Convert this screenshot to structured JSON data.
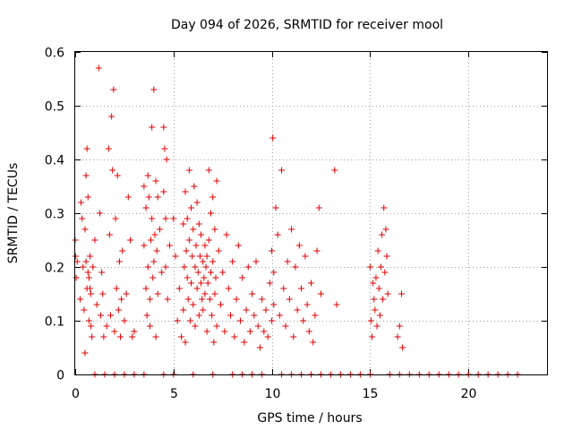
{
  "chart_data": {
    "type": "scatter",
    "title": "Day 094 of 2026, SRMTID for receiver mool",
    "xlabel": "GPS time / hours",
    "ylabel": "SRMTID / TECUs",
    "xlim": [
      0,
      24
    ],
    "ylim": [
      0,
      0.6
    ],
    "xticks": [
      "0",
      "5",
      "10",
      "15",
      "20"
    ],
    "yticks": [
      "0",
      "0.1",
      "0.2",
      "0.3",
      "0.4",
      "0.5",
      "0.6"
    ],
    "grid": true,
    "marker": "+",
    "series": [
      {
        "name": "SRMTID",
        "color": "#e00000",
        "x": [
          0.0,
          0.02,
          0.05,
          0.1,
          0.25,
          0.3,
          0.35,
          0.4,
          0.45,
          0.5,
          0.5,
          0.55,
          0.55,
          0.6,
          0.6,
          0.65,
          0.65,
          0.7,
          0.7,
          0.75,
          0.75,
          0.8,
          0.8,
          0.85,
          0.9,
          1.0,
          1.1,
          1.2,
          1.25,
          1.3,
          1.35,
          1.4,
          1.45,
          1.6,
          1.7,
          1.75,
          1.8,
          1.85,
          1.9,
          1.95,
          2.0,
          2.05,
          2.1,
          2.15,
          2.2,
          2.25,
          2.3,
          2.35,
          2.4,
          2.5,
          2.6,
          2.7,
          2.8,
          2.9,
          3.0,
          3.5,
          3.5,
          3.6,
          3.6,
          3.65,
          3.7,
          3.7,
          3.75,
          3.8,
          3.8,
          3.85,
          3.9,
          3.9,
          3.95,
          4.0,
          4.0,
          4.05,
          4.1,
          4.1,
          4.15,
          4.2,
          4.2,
          4.3,
          4.4,
          4.5,
          4.5,
          4.55,
          4.6,
          4.6,
          4.65,
          4.7,
          4.8,
          5.0,
          5.1,
          5.2,
          5.3,
          5.4,
          5.5,
          5.5,
          5.55,
          5.6,
          5.6,
          5.65,
          5.7,
          5.7,
          5.75,
          5.8,
          5.8,
          5.85,
          5.9,
          5.9,
          5.95,
          6.0,
          6.0,
          6.05,
          6.1,
          6.1,
          6.15,
          6.2,
          6.2,
          6.25,
          6.3,
          6.3,
          6.35,
          6.4,
          6.4,
          6.45,
          6.5,
          6.5,
          6.55,
          6.6,
          6.6,
          6.65,
          6.7,
          6.7,
          6.75,
          6.8,
          6.8,
          6.85,
          6.9,
          6.9,
          6.95,
          7.0,
          7.0,
          7.05,
          7.1,
          7.1,
          7.15,
          7.2,
          7.2,
          7.3,
          7.4,
          7.5,
          7.6,
          7.7,
          7.8,
          7.9,
          8.0,
          8.1,
          8.2,
          8.3,
          8.4,
          8.5,
          8.6,
          8.7,
          8.8,
          8.9,
          9.0,
          9.1,
          9.2,
          9.3,
          9.4,
          9.5,
          9.6,
          9.7,
          9.8,
          9.9,
          10.0,
          10.0,
          10.05,
          10.1,
          10.1,
          10.2,
          10.3,
          10.4,
          10.5,
          10.6,
          10.7,
          10.8,
          10.9,
          11.0,
          11.1,
          11.2,
          11.3,
          11.4,
          11.5,
          11.6,
          11.7,
          11.8,
          11.9,
          12.0,
          12.1,
          12.2,
          12.3,
          12.4,
          12.5,
          13.2,
          13.3,
          15.0,
          15.05,
          15.1,
          15.15,
          15.2,
          15.25,
          15.3,
          15.35,
          15.4,
          15.45,
          15.5,
          15.55,
          15.6,
          15.65,
          15.7,
          15.75,
          15.8,
          15.85,
          15.9,
          16.4,
          16.5,
          16.6,
          16.65,
          1.0,
          1.5,
          2.0,
          2.5,
          3.0,
          3.5,
          4.5,
          5.0,
          6.0,
          7.0,
          8.0,
          8.5,
          9.0,
          9.5,
          10.5,
          11.0,
          11.5,
          12.0,
          12.5,
          13.0,
          13.5,
          14.0,
          14.5,
          15.0,
          16.0,
          16.5,
          17.0,
          17.5,
          18.0,
          18.5,
          19.0,
          19.5,
          20.0,
          20.5,
          21.0,
          21.5,
          22.0,
          22.5
        ],
        "y": [
          0.25,
          0.22,
          0.18,
          0.21,
          0.14,
          0.32,
          0.29,
          0.2,
          0.12,
          0.27,
          0.04,
          0.37,
          0.21,
          0.42,
          0.16,
          0.33,
          0.19,
          0.18,
          0.1,
          0.16,
          0.22,
          0.09,
          0.15,
          0.07,
          0.2,
          0.25,
          0.13,
          0.57,
          0.3,
          0.11,
          0.19,
          0.15,
          0.07,
          0.09,
          0.42,
          0.26,
          0.11,
          0.48,
          0.38,
          0.53,
          0.08,
          0.29,
          0.16,
          0.37,
          0.12,
          0.21,
          0.07,
          0.14,
          0.23,
          0.1,
          0.15,
          0.33,
          0.25,
          0.07,
          0.08,
          0.35,
          0.24,
          0.16,
          0.31,
          0.11,
          0.37,
          0.2,
          0.33,
          0.09,
          0.14,
          0.25,
          0.46,
          0.29,
          0.18,
          0.53,
          0.21,
          0.26,
          0.36,
          0.07,
          0.23,
          0.33,
          0.15,
          0.27,
          0.19,
          0.46,
          0.34,
          0.42,
          0.2,
          0.29,
          0.4,
          0.14,
          0.24,
          0.29,
          0.22,
          0.1,
          0.16,
          0.07,
          0.28,
          0.12,
          0.2,
          0.34,
          0.06,
          0.23,
          0.18,
          0.29,
          0.14,
          0.38,
          0.25,
          0.1,
          0.31,
          0.17,
          0.22,
          0.13,
          0.27,
          0.35,
          0.2,
          0.09,
          0.24,
          0.16,
          0.32,
          0.19,
          0.28,
          0.11,
          0.22,
          0.17,
          0.26,
          0.14,
          0.21,
          0.12,
          0.18,
          0.24,
          0.15,
          0.2,
          0.22,
          0.08,
          0.17,
          0.25,
          0.38,
          0.14,
          0.19,
          0.3,
          0.11,
          0.21,
          0.33,
          0.06,
          0.15,
          0.27,
          0.18,
          0.36,
          0.09,
          0.23,
          0.13,
          0.19,
          0.08,
          0.26,
          0.16,
          0.11,
          0.21,
          0.07,
          0.14,
          0.24,
          0.1,
          0.18,
          0.06,
          0.12,
          0.2,
          0.08,
          0.15,
          0.11,
          0.21,
          0.09,
          0.05,
          0.14,
          0.08,
          0.12,
          0.07,
          0.17,
          0.23,
          0.1,
          0.44,
          0.19,
          0.13,
          0.31,
          0.26,
          0.11,
          0.38,
          0.16,
          0.09,
          0.21,
          0.14,
          0.27,
          0.07,
          0.2,
          0.12,
          0.24,
          0.16,
          0.1,
          0.22,
          0.13,
          0.08,
          0.17,
          0.06,
          0.11,
          0.23,
          0.31,
          0.15,
          0.38,
          0.13,
          0.2,
          0.1,
          0.07,
          0.17,
          0.14,
          0.12,
          0.18,
          0.09,
          0.23,
          0.16,
          0.11,
          0.2,
          0.26,
          0.14,
          0.31,
          0.19,
          0.27,
          0.22,
          0.15,
          0.07,
          0.09,
          0.15,
          0.05,
          0.0,
          0.0,
          0.0,
          0.0,
          0.0,
          0.0,
          0.0,
          0.0,
          0.0,
          0.0,
          0.0,
          0.0,
          0.0,
          0.0,
          0.0,
          0.0,
          0.0,
          0.0,
          0.0,
          0.0,
          0.0,
          0.0,
          0.0,
          0.0,
          0.0,
          0.0,
          0.0,
          0.0,
          0.0,
          0.0,
          0.0,
          0.0,
          0.0,
          0.0,
          0.0,
          0.0,
          0.0,
          0.0
        ]
      }
    ]
  }
}
